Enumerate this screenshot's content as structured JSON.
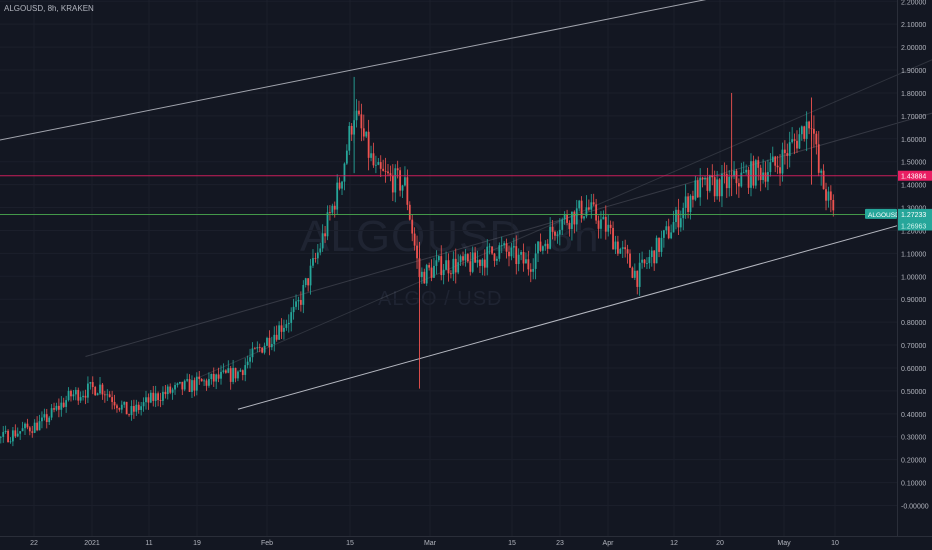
{
  "header": {
    "title": "ALGOUSD, 8h, KRAKEN"
  },
  "watermark": {
    "symbol": "ALGOUSD, 8h",
    "pair": "ALGO / USD"
  },
  "colors": {
    "background": "#131722",
    "up": "#26a69a",
    "down": "#ef5350",
    "channel": "#d1d4dc",
    "resistance": "#e91e63",
    "price_line": "#4caf50",
    "axis_text": "#b2b5be"
  },
  "price_labels": {
    "symbol_tag": "ALGOUSD",
    "current": "1.27233",
    "countdown": "38:27",
    "level_red": "1.43884",
    "level_green": "1.26963"
  },
  "chart_data": {
    "type": "candlestick",
    "title": "ALGOUSD, 8h, KRAKEN",
    "ylim": [
      -0.05,
      2.35
    ],
    "y_ticks": [
      "2.20000",
      "2.10000",
      "2.00000",
      "1.90000",
      "1.80000",
      "1.70000",
      "1.60000",
      "1.50000",
      "1.40000",
      "1.30000",
      "1.20000",
      "1.10000",
      "1.00000",
      "0.90000",
      "0.80000",
      "0.70000",
      "0.60000",
      "0.50000",
      "0.40000",
      "0.30000",
      "0.20000",
      "0.10000",
      "-0.00000"
    ],
    "x_ticks": [
      "22",
      "2021",
      "11",
      "19",
      "Feb",
      "15",
      "Mar",
      "15",
      "23",
      "Apr",
      "12",
      "20",
      "May",
      "10"
    ],
    "current_price": 1.27233,
    "horizontal_levels": [
      {
        "value": 1.43884,
        "color": "#e91e63"
      },
      {
        "value": 1.26963,
        "color": "#4caf50"
      }
    ],
    "channel": {
      "upper": {
        "from": {
          "date": "2020-12-16",
          "price": 1.53
        },
        "to": {
          "date": "2021-05-03",
          "price": 2.4
        }
      },
      "lower": {
        "from": {
          "date": "2021-01-28",
          "price": 0.42
        },
        "to": {
          "date": "2021-05-18",
          "price": 1.39
        }
      },
      "middle": {
        "from": {
          "date": "2021-01-07",
          "price": 0.65
        },
        "to": {
          "date": "2021-05-10",
          "price": 1.77
        }
      },
      "middle2": {
        "from": {
          "date": "2021-01-22",
          "price": 0.55
        },
        "to": {
          "date": "2021-05-12",
          "price": 2.06
        }
      }
    },
    "price_path": [
      [
        "2020-12-16",
        0.34
      ],
      [
        "2020-12-22",
        0.32
      ],
      [
        "2020-12-26",
        0.29
      ],
      [
        "2021-01-01",
        0.36
      ],
      [
        "2021-01-05",
        0.48
      ],
      [
        "2021-01-09",
        0.52
      ],
      [
        "2021-01-13",
        0.4
      ],
      [
        "2021-01-17",
        0.48
      ],
      [
        "2021-01-21",
        0.52
      ],
      [
        "2021-01-25",
        0.55
      ],
      [
        "2021-01-28",
        0.58
      ],
      [
        "2021-02-01",
        0.72
      ],
      [
        "2021-02-05",
        0.85
      ],
      [
        "2021-02-08",
        1.1
      ],
      [
        "2021-02-11",
        1.4
      ],
      [
        "2021-02-13",
        1.72
      ],
      [
        "2021-02-16",
        1.45
      ],
      [
        "2021-02-20",
        1.4
      ],
      [
        "2021-02-22",
        1.0
      ],
      [
        "2021-02-25",
        1.05
      ],
      [
        "2021-03-01",
        1.05
      ],
      [
        "2021-03-05",
        1.12
      ],
      [
        "2021-03-09",
        1.05
      ],
      [
        "2021-03-13",
        1.23
      ],
      [
        "2021-03-17",
        1.3
      ],
      [
        "2021-03-20",
        1.2
      ],
      [
        "2021-03-24",
        1.0
      ],
      [
        "2021-03-28",
        1.18
      ],
      [
        "2021-04-01",
        1.38
      ],
      [
        "2021-04-05",
        1.4
      ],
      [
        "2021-04-09",
        1.45
      ],
      [
        "2021-04-12",
        1.48
      ],
      [
        "2021-04-15",
        1.6
      ],
      [
        "2021-04-17",
        1.7
      ],
      [
        "2021-04-18",
        1.45
      ],
      [
        "2021-04-20",
        1.27
      ]
    ]
  }
}
